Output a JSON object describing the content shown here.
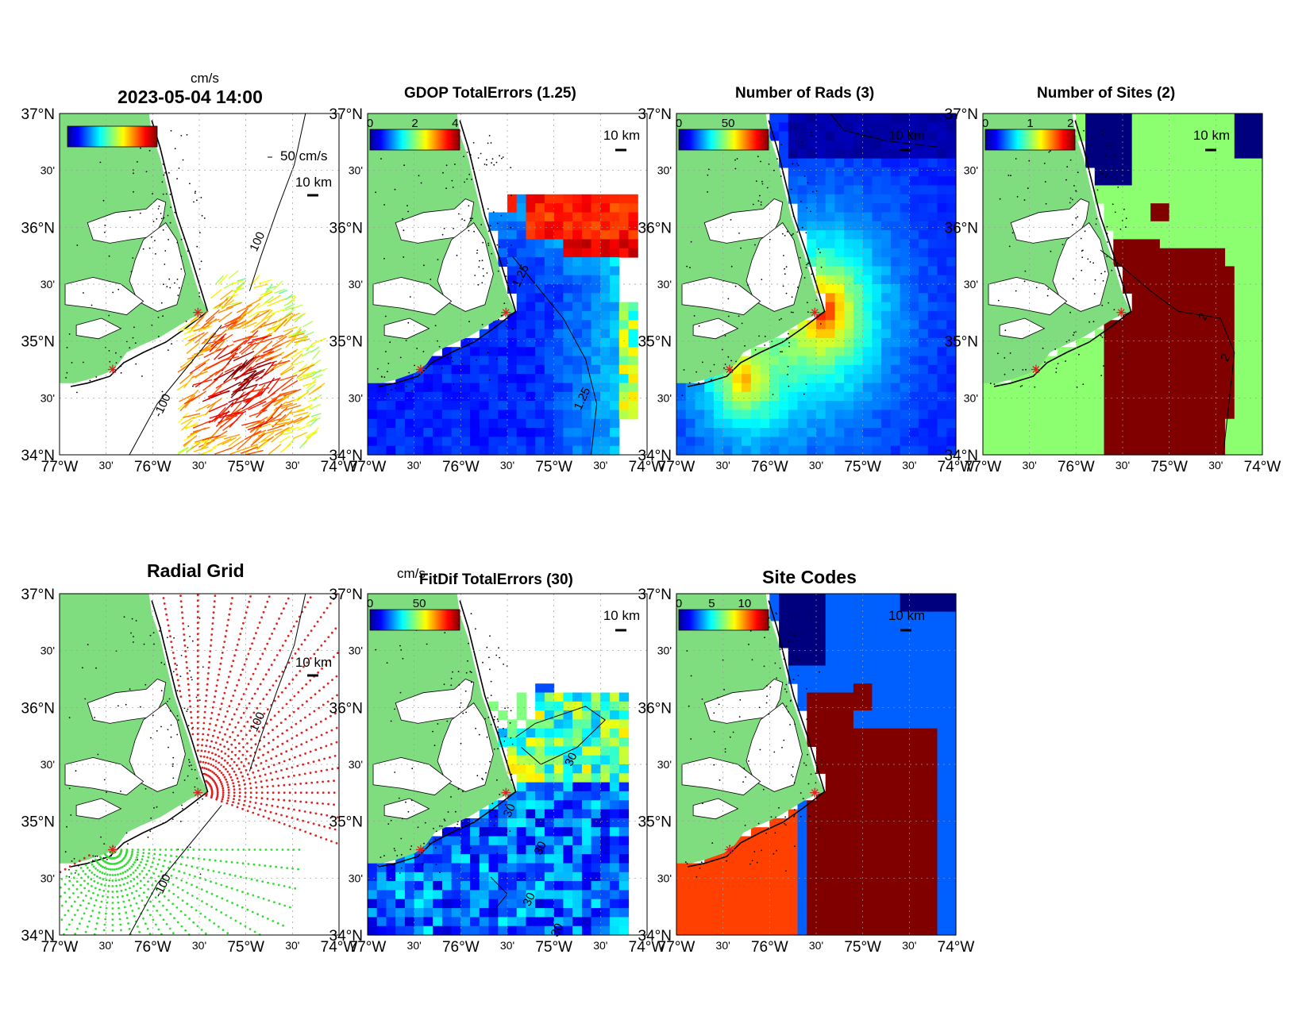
{
  "figure": {
    "timestamp": "2023-05-04 14:00",
    "panels": [
      {
        "id": "vectors",
        "title": "",
        "colorbar": {
          "unit": "cm/s",
          "ticks": []
        },
        "scalebar": "10 km",
        "vector_scale": "50 cm/s",
        "contours": [
          "100",
          "-100"
        ]
      },
      {
        "id": "gdop",
        "title": "GDOP TotalErrors (1.25)",
        "colorbar": {
          "unit": "",
          "ticks": [
            "0",
            "2",
            "4"
          ]
        },
        "scalebar": "10 km",
        "contours": [
          "1.25",
          "1.25"
        ]
      },
      {
        "id": "nrads",
        "title": "Number of Rads (3)",
        "colorbar": {
          "unit": "",
          "ticks": [
            "0",
            "50"
          ]
        },
        "scalebar": "10 km",
        "contours": []
      },
      {
        "id": "nsites",
        "title": "Number of Sites (2)",
        "colorbar": {
          "unit": "",
          "ticks": [
            "0",
            "1",
            "2"
          ]
        },
        "scalebar": "10 km",
        "contours": [
          "2",
          "2"
        ]
      },
      {
        "id": "radgrid",
        "title": "Radial Grid",
        "colorbar": null,
        "scalebar": "10 km",
        "contours": [
          "100",
          "-100"
        ]
      },
      {
        "id": "fitdif",
        "title": "FitDif TotalErrors (30)",
        "colorbar": {
          "unit": "cm/s",
          "ticks": [
            "0",
            "50"
          ]
        },
        "scalebar": "10 km",
        "contours": [
          "30",
          "30",
          "30",
          "30",
          "30"
        ]
      },
      {
        "id": "sitecodes",
        "title": "Site Codes",
        "colorbar": {
          "unit": "",
          "ticks": [
            "0",
            "5",
            "10"
          ]
        },
        "scalebar": "10 km",
        "contours": []
      }
    ],
    "axes": {
      "lat_labels": [
        "37°N",
        "30'",
        "36°N",
        "30'",
        "35°N",
        "30'",
        "34°N"
      ],
      "lon_labels": [
        "77°W",
        "30'",
        "76°W",
        "30'",
        "75°W",
        "30'",
        "74°W"
      ]
    },
    "colors": {
      "land": "#7fdc7f",
      "coast": "#000000",
      "site_marker": "#e02020",
      "grid_green": "#33dd33",
      "grid_red": "#dd2222",
      "jet": [
        "#00008f",
        "#0000ff",
        "#0080ff",
        "#00ffff",
        "#80ff80",
        "#ffff00",
        "#ff8000",
        "#ff0000",
        "#800000"
      ],
      "sites_light": "#8cff70",
      "sites_dark": "#800000",
      "sites_navy": "#00007f",
      "codes_blue": "#0060ff",
      "codes_orange": "#ff4000"
    }
  }
}
